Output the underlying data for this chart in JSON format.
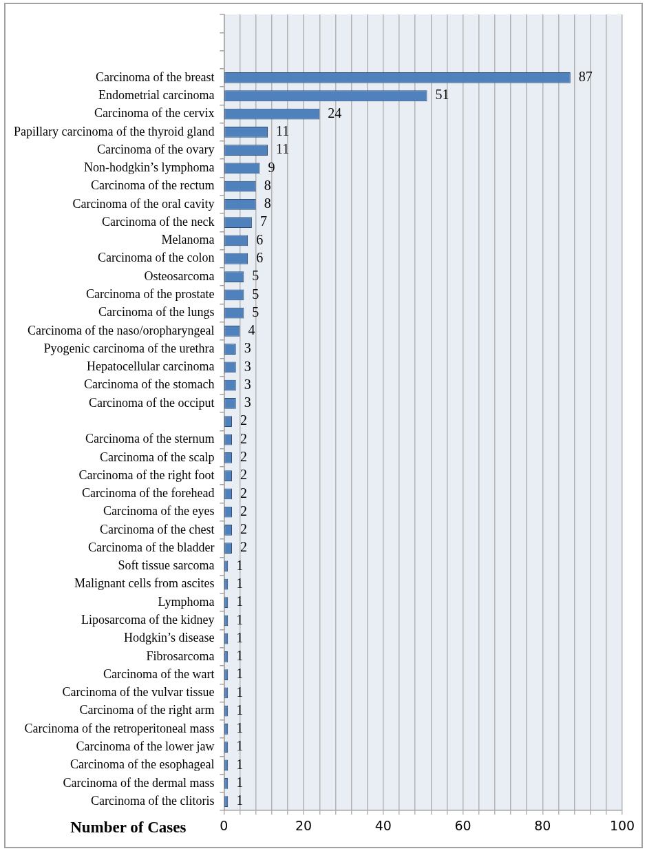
{
  "chart_data": {
    "type": "bar",
    "orientation": "horizontal",
    "xlabel": "Number of Cases",
    "categories": [
      null,
      null,
      null,
      "Carcinoma of the breast",
      "Endometrial carcinoma",
      "Carcinoma of the cervix",
      "Papillary carcinoma of the thyroid gland",
      "Carcinoma of the ovary",
      "Non-hodgkin’s lymphoma",
      "Carcinoma of the rectum",
      "Carcinoma of the oral cavity",
      "Carcinoma of the neck",
      "Melanoma",
      "Carcinoma of the colon",
      "Osteosarcoma",
      "Carcinoma of the prostate",
      "Carcinoma of the lungs",
      "Carcinoma of the naso/oropharyngeal",
      "Pyogenic carcinoma of the urethra",
      "Hepatocellular carcinoma",
      "Carcinoma of the stomach",
      "Carcinoma of the occiput",
      null,
      "Carcinoma of the sternum",
      "Carcinoma of the scalp",
      "Carcinoma of the right foot",
      "Carcinoma of the forehead",
      "Carcinoma of the eyes",
      "Carcinoma of the chest",
      "Carcinoma of the bladder",
      "Soft tissue sarcoma",
      "Malignant cells from ascites",
      "Lymphoma",
      "Liposarcoma of the kidney",
      "Hodgkin’s disease",
      "Fibrosarcoma",
      "Carcinoma of the wart",
      "Carcinoma of the vulvar tissue",
      "Carcinoma of the right arm",
      "Carcinoma of the retroperitoneal mass",
      "Carcinoma of the lower jaw",
      "Carcinoma of the esophageal",
      "Carcinoma of the dermal mass",
      "Carcinoma of the clitoris"
    ],
    "values": [
      null,
      null,
      null,
      87,
      51,
      24,
      11,
      11,
      9,
      8,
      8,
      7,
      6,
      6,
      5,
      5,
      5,
      4,
      3,
      3,
      3,
      3,
      2,
      2,
      2,
      2,
      2,
      2,
      2,
      2,
      1,
      1,
      1,
      1,
      1,
      1,
      1,
      1,
      1,
      1,
      1,
      1,
      1,
      1
    ],
    "color": "#4f81bd",
    "data_labels": true,
    "grid": "x",
    "xlim": [
      0,
      100
    ],
    "xticks": [
      0,
      {
        "value": 4,
        "label": null
      },
      {
        "value": 8,
        "label": null
      },
      {
        "value": 12,
        "label": null
      },
      {
        "value": 16,
        "label": null
      },
      20,
      {
        "value": 24,
        "label": null
      },
      {
        "value": 28,
        "label": null
      },
      {
        "value": 32,
        "label": null
      },
      {
        "value": 36,
        "label": null
      },
      40,
      {
        "value": 44,
        "label": null
      },
      {
        "value": 48,
        "label": null
      },
      {
        "value": 52,
        "label": null
      },
      {
        "value": 56,
        "label": null
      },
      60,
      {
        "value": 64,
        "label": null
      },
      {
        "value": 68,
        "label": null
      },
      {
        "value": 72,
        "label": null
      },
      {
        "value": 76,
        "label": null
      },
      80,
      {
        "value": 84,
        "label": null
      },
      {
        "value": 88,
        "label": null
      },
      {
        "value": 92,
        "label": null
      },
      {
        "value": 96,
        "label": null
      },
      100
    ]
  }
}
